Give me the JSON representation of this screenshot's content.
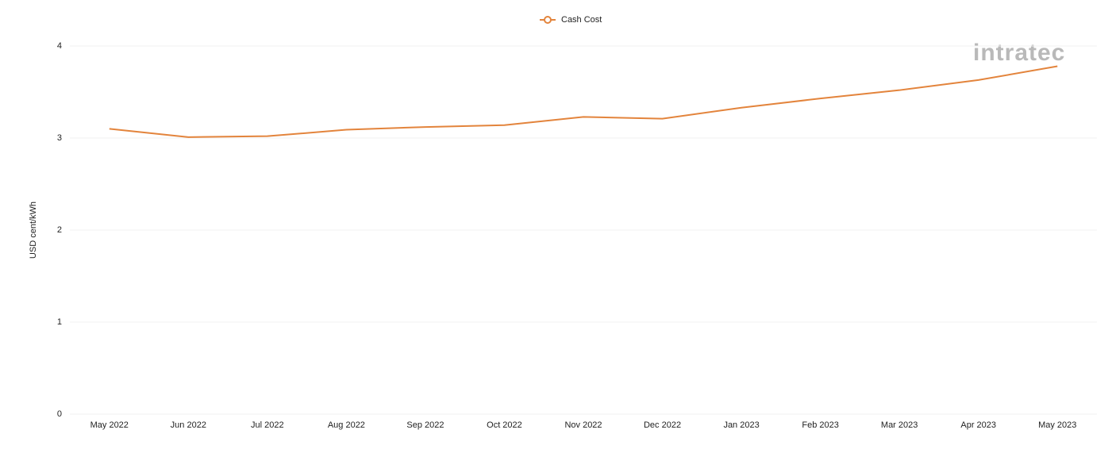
{
  "chart_data": {
    "type": "line",
    "y_label": "USD cent/kWh",
    "watermark": "intratec",
    "categories": [
      "May 2022",
      "Jun 2022",
      "Jul 2022",
      "Aug 2022",
      "Sep 2022",
      "Oct 2022",
      "Nov 2022",
      "Dec 2022",
      "Jan 2023",
      "Feb 2023",
      "Mar 2023",
      "Apr 2023",
      "May 2023"
    ],
    "series": [
      {
        "name": "Cash Cost",
        "color": "#e3843c",
        "values": [
          3.1,
          3.01,
          3.02,
          3.09,
          3.12,
          3.14,
          3.23,
          3.21,
          3.33,
          3.43,
          3.52,
          3.63,
          3.78
        ]
      }
    ],
    "ylim": [
      0,
      4
    ],
    "yticks": [
      0,
      1,
      2,
      3,
      4
    ],
    "grid": true,
    "legend": "top"
  }
}
